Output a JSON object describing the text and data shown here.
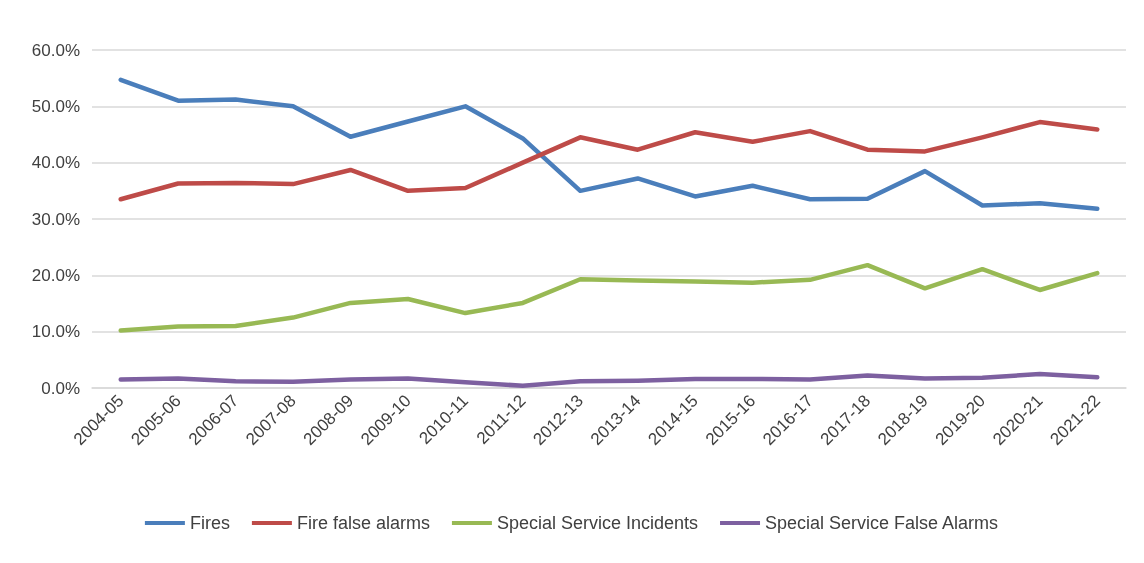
{
  "chart_data": {
    "type": "line",
    "categories": [
      "2004-05",
      "2005-06",
      "2006-07",
      "2007-08",
      "2008-09",
      "2009-10",
      "2010-11",
      "2011-12",
      "2012-13",
      "2013-14",
      "2014-15",
      "2015-16",
      "2016-17",
      "2017-18",
      "2018-19",
      "2019-20",
      "2020-21",
      "2021-22"
    ],
    "series": [
      {
        "name": "Fires",
        "color": "#4a7ebb",
        "values": [
          54.7,
          51.0,
          51.2,
          50.0,
          44.6,
          47.3,
          50.0,
          44.3,
          35.0,
          37.2,
          34.0,
          35.9,
          33.5,
          33.6,
          38.5,
          32.4,
          32.8,
          31.8
        ]
      },
      {
        "name": "Fire false alarms",
        "color": "#be4b48",
        "values": [
          33.5,
          36.3,
          36.4,
          36.2,
          38.7,
          35.0,
          35.5,
          40.0,
          44.5,
          42.3,
          45.4,
          43.7,
          45.6,
          42.3,
          42.0,
          44.5,
          47.2,
          45.9
        ]
      },
      {
        "name": "Special Service Incidents",
        "color": "#98b954",
        "values": [
          10.2,
          10.9,
          11.0,
          12.5,
          15.1,
          15.8,
          13.3,
          15.1,
          19.3,
          19.1,
          18.9,
          18.7,
          19.2,
          21.8,
          17.7,
          21.1,
          17.4,
          20.4
        ]
      },
      {
        "name": "Special Service False Alarms",
        "color": "#7d60a0",
        "values": [
          1.5,
          1.7,
          1.2,
          1.1,
          1.5,
          1.7,
          1.0,
          0.4,
          1.2,
          1.3,
          1.6,
          1.6,
          1.5,
          2.2,
          1.7,
          1.8,
          2.5,
          1.9
        ]
      }
    ],
    "ylim": [
      0,
      60
    ],
    "yticks": [
      {
        "value": 0,
        "label": "0.0%"
      },
      {
        "value": 10,
        "label": "10.0%"
      },
      {
        "value": 20,
        "label": "20.0%"
      },
      {
        "value": 30,
        "label": "30.0%"
      },
      {
        "value": 40,
        "label": "40.0%"
      },
      {
        "value": 50,
        "label": "50.0%"
      },
      {
        "value": 60,
        "label": "60.0%"
      }
    ],
    "grid": "y",
    "legend": "bottom",
    "marker": "none",
    "line_style": "solid"
  }
}
